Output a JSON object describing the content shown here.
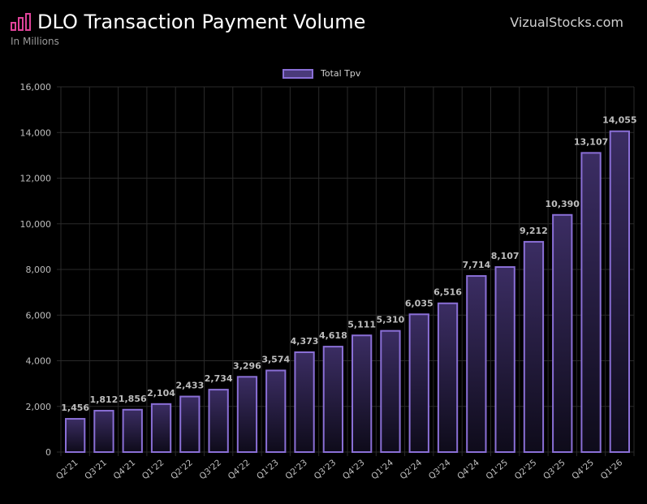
{
  "header": {
    "title": "DLO Transaction Payment Volume",
    "subtitle": "In Millions",
    "brand": "VizualStocks.com",
    "logo_icon": "bar-chart-icon"
  },
  "colors": {
    "background": "#000000",
    "bar_fill_top": "#3b2d63",
    "bar_fill_bottom": "#0e0b1a",
    "bar_stroke": "#8a6fd6",
    "grid": "#2a2a2a",
    "text": "#bdbdbd",
    "logo": "#e0439a"
  },
  "chart_data": {
    "type": "bar",
    "title": "DLO Transaction Payment Volume",
    "subtitle": "In Millions",
    "xlabel": "",
    "ylabel": "",
    "ylim": [
      0,
      16000
    ],
    "yticks": [
      0,
      2000,
      4000,
      6000,
      8000,
      10000,
      12000,
      14000,
      16000
    ],
    "ytick_labels": [
      "0",
      "2,000",
      "4,000",
      "6,000",
      "8,000",
      "10,000",
      "12,000",
      "14,000",
      "16,000"
    ],
    "grid": true,
    "legend_position": "top-center",
    "categories": [
      "Q2'21",
      "Q3'21",
      "Q4'21",
      "Q1'22",
      "Q2'22",
      "Q3'22",
      "Q4'22",
      "Q1'23",
      "Q2'23",
      "Q3'23",
      "Q4'23",
      "Q1'24",
      "Q2'24",
      "Q3'24",
      "Q4'24",
      "Q1'25",
      "Q2'25",
      "Q3'25",
      "Q4'25",
      "Q1'26"
    ],
    "series": [
      {
        "name": "Total Tpv",
        "values": [
          1456,
          1812,
          1856,
          2104,
          2433,
          2734,
          3296,
          3574,
          4373,
          4618,
          5111,
          5310,
          6035,
          6516,
          7714,
          8107,
          9212,
          10390,
          13107,
          14055
        ],
        "value_labels": [
          "1,456",
          "1,812",
          "1,856",
          "2,104",
          "2,433",
          "2,734",
          "3,296",
          "3,574",
          "4,373",
          "4,618",
          "5,111",
          "5,310",
          "6,035",
          "6,516",
          "7,714",
          "8,107",
          "9,212",
          "10,390",
          "13,107",
          "14,055"
        ]
      }
    ]
  }
}
